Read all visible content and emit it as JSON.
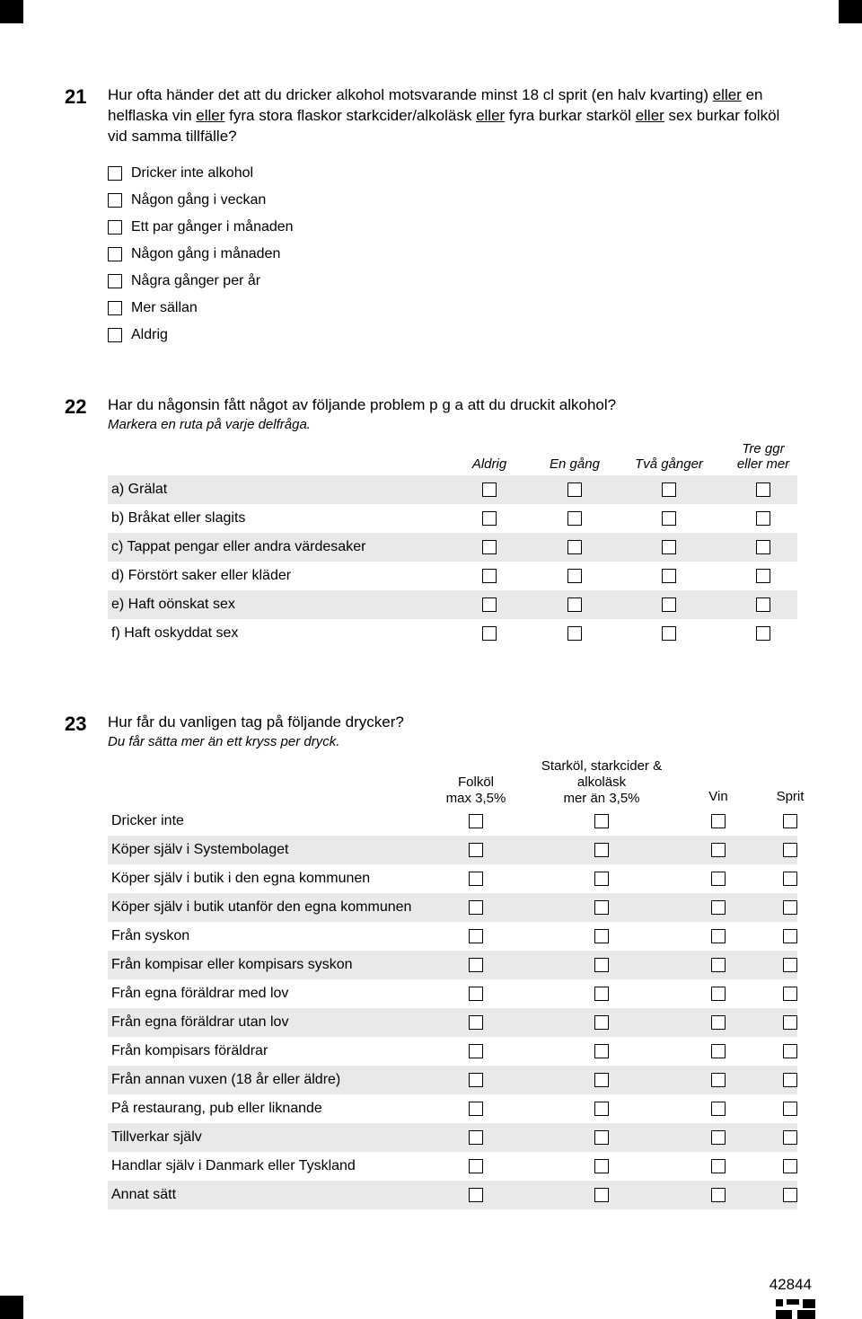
{
  "page_number": "42844",
  "q21": {
    "number": "21",
    "text_parts": [
      "Hur ofta händer det att du dricker alkohol motsvarande minst 18 cl sprit (en halv kvarting) ",
      "eller",
      " en helflaska vin ",
      "eller",
      " fyra stora flaskor starkcider/alkoläsk ",
      "eller",
      " fyra burkar starköl ",
      "eller",
      " sex burkar folköl vid samma tillfälle?"
    ],
    "options": [
      "Dricker inte alkohol",
      "Någon gång i veckan",
      "Ett par gånger i månaden",
      "Någon gång i månaden",
      "Några gånger per år",
      "Mer sällan",
      "Aldrig"
    ]
  },
  "q22": {
    "number": "22",
    "text": "Har du någonsin fått något av följande problem p g a att du druckit alkohol?",
    "sub": "Markera en ruta på varje delfråga.",
    "headers": [
      "Aldrig",
      "En gång",
      "Två gånger",
      "Tre ggr eller mer"
    ],
    "rows": [
      "a) Grälat",
      "b) Bråkat eller slagits",
      "c) Tappat pengar eller andra värdesaker",
      "d) Förstört saker eller kläder",
      "e) Haft oönskat sex",
      "f) Haft oskyddat sex"
    ]
  },
  "q23": {
    "number": "23",
    "text": "Hur får du vanligen tag på följande drycker?",
    "sub": "Du får sätta mer än ett kryss per dryck.",
    "headers": [
      {
        "line1": "Folköl",
        "line2": "max 3,5%"
      },
      {
        "line1": "Starköl, starkcider &",
        "line2": "alkoläsk",
        "line3": "mer än 3,5%"
      },
      {
        "line1": "Vin"
      },
      {
        "line1": "Sprit"
      }
    ],
    "rows": [
      "Dricker inte",
      "Köper själv i Systembolaget",
      "Köper själv i butik i den egna kommunen",
      "Köper själv i butik utanför den egna kommunen",
      "Från syskon",
      "Från kompisar eller kompisars syskon",
      "Från egna föräldrar med lov",
      "Från egna föräldrar utan lov",
      "Från kompisars föräldrar",
      "Från annan vuxen (18 år eller äldre)",
      "På restaurang, pub eller liknande",
      "Tillverkar själv",
      "Handlar själv i Danmark eller Tyskland",
      "Annat sätt"
    ]
  },
  "colors": {
    "text": "#000000",
    "background": "#ffffff",
    "row_shade": "#e9e9e9"
  }
}
